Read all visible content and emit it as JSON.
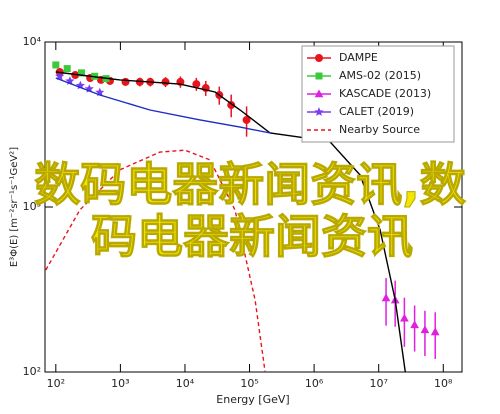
{
  "chart_data": {
    "type": "line",
    "xscale": "log",
    "yscale": "log",
    "xlabel": "Energy [GeV]",
    "ylabel": "E³Φ(E) [m⁻²sr⁻¹s⁻¹GeV²]",
    "xlim": [
      68,
      195000000
    ],
    "ylim": [
      100,
      10000
    ],
    "xticks": [
      {
        "value": 100,
        "label": "10²"
      },
      {
        "value": 1000,
        "label": "10³"
      },
      {
        "value": 10000,
        "label": "10⁴"
      },
      {
        "value": 100000,
        "label": "10⁵"
      },
      {
        "value": 1000000,
        "label": "10⁶"
      },
      {
        "value": 10000000,
        "label": "10⁷"
      },
      {
        "value": 100000000,
        "label": "10⁸"
      }
    ],
    "yticks": [
      {
        "value": 100,
        "label": "10²"
      },
      {
        "value": 1000,
        "label": "10³"
      },
      {
        "value": 10000,
        "label": "10⁴"
      }
    ],
    "legend": "upper right",
    "series": [
      {
        "name": "DAMPE",
        "color": "#e8141c",
        "marker": "circle",
        "x": [
          115,
          200,
          340,
          500,
          690,
          1200,
          2000,
          2900,
          5000,
          8500,
          15000,
          21000,
          34000,
          52000,
          90000
        ],
        "values": [
          6580,
          6310,
          6050,
          5890,
          5810,
          5730,
          5730,
          5730,
          5730,
          5730,
          5560,
          5260,
          4770,
          4150,
          3370
        ],
        "errors": [
          250,
          250,
          250,
          250,
          300,
          300,
          350,
          350,
          400,
          450,
          500,
          550,
          600,
          650,
          700
        ]
      },
      {
        "name": "AMS-02 (2015)",
        "color": "#3cc83c",
        "marker": "square",
        "x": [
          100,
          150,
          250,
          400,
          600
        ],
        "values": [
          7260,
          6900,
          6500,
          6200,
          6000
        ],
        "errors": [
          200,
          200,
          200,
          250,
          250
        ]
      },
      {
        "name": "KASCADE (2013)",
        "color": "#e020e0",
        "marker": "triangle",
        "x": [
          13000000,
          18000000,
          25000000,
          36000000,
          52000000,
          75000000
        ],
        "values": [
          281,
          273,
          212,
          193,
          180,
          175
        ],
        "errors": [
          90,
          85,
          70,
          60,
          55,
          55
        ]
      },
      {
        "name": "CALET (2019)",
        "color": "#7a3cf0",
        "marker": "star",
        "x": [
          115,
          165,
          240,
          330,
          480
        ],
        "values": [
          6200,
          5800,
          5450,
          5200,
          4950
        ],
        "errors": [
          200,
          200,
          200,
          200,
          200
        ]
      },
      {
        "color": "#000000",
        "line_style": "solid",
        "x": [
          100,
          981,
          8350,
          29200,
          71300,
          208000,
          607000,
          1770000,
          5170000,
          10500000,
          18000000,
          25800000
        ],
        "values": [
          6580,
          5890,
          5560,
          4980,
          3870,
          2810,
          2650,
          2480,
          1560,
          726,
          273,
          100
        ]
      },
      {
        "color": "#1c2cc8",
        "line_style": "solid",
        "x": [
          100,
          481,
          2860,
          17100,
          71300,
          208000
        ],
        "values": [
          6050,
          4770,
          3870,
          3370,
          3050,
          2810
        ]
      },
      {
        "name": "Nearby Source",
        "color": "#e8141c",
        "line_style": "dashed",
        "x": [
          70,
          235,
          981,
          4090,
          10000,
          24400,
          59600,
          122000,
          174000
        ],
        "values": [
          415,
          959,
          1680,
          2150,
          2210,
          1930,
          959,
          273,
          100
        ]
      }
    ]
  },
  "overlay_text": [
    "数码电器新闻资讯,数",
    "码电器新闻资讯"
  ]
}
